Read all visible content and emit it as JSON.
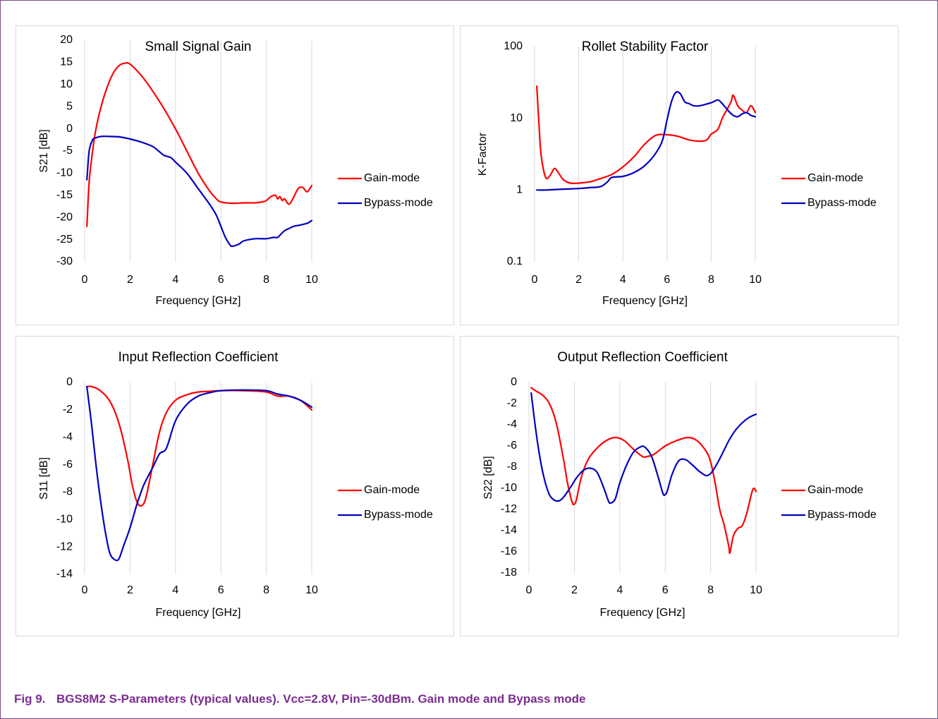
{
  "caption": {
    "label": "Fig 9.",
    "text": "BGS8M2 S-Parameters (typical values). Vcc=2.8V, Pin=-30dBm. Gain mode and Bypass mode"
  },
  "colors": {
    "gain": "#ff0000",
    "bypass": "#0000c0",
    "grid": "#d9d9d9",
    "text": "#000000"
  },
  "chart_data": [
    {
      "type": "line",
      "title": "Small Signal Gain",
      "xlabel": "Frequency [GHz]",
      "ylabel": "S21 [dB]",
      "xlim": [
        0,
        10
      ],
      "ylim": [
        -30,
        20
      ],
      "xticks": [
        0,
        2,
        4,
        6,
        8,
        10
      ],
      "yticks": [
        -30,
        -25,
        -20,
        -15,
        -10,
        -5,
        0,
        5,
        10,
        15,
        20
      ],
      "yscale": "linear",
      "grid": "vertical",
      "legend": "right",
      "series": [
        {
          "name": "Gain-mode",
          "color": "#ff0000",
          "x": [
            0.1,
            0.2,
            0.35,
            0.5,
            0.75,
            1.0,
            1.25,
            1.5,
            1.75,
            2.0,
            2.5,
            3.0,
            3.5,
            4.0,
            4.5,
            5.0,
            5.5,
            5.8,
            6.0,
            6.5,
            7.0,
            7.5,
            7.8,
            8.0,
            8.2,
            8.4,
            8.5,
            8.6,
            8.7,
            8.8,
            9.0,
            9.2,
            9.4,
            9.6,
            9.8,
            10.0
          ],
          "y": [
            -22,
            -12,
            -5,
            0,
            5.5,
            9.5,
            12.5,
            14.2,
            14.8,
            14.6,
            12,
            8.5,
            4.5,
            0,
            -5,
            -10,
            -14,
            -15.8,
            -16.5,
            -16.8,
            -16.7,
            -16.7,
            -16.5,
            -16.2,
            -15.3,
            -15,
            -15.8,
            -15.3,
            -16.2,
            -15.8,
            -17,
            -15.5,
            -13.5,
            -13.2,
            -14.2,
            -12.8
          ]
        },
        {
          "name": "Bypass-mode",
          "color": "#0000c0",
          "x": [
            0.1,
            0.2,
            0.35,
            0.5,
            0.75,
            1.0,
            1.5,
            2.0,
            2.5,
            3.0,
            3.3,
            3.5,
            3.8,
            4.0,
            4.5,
            5.0,
            5.5,
            5.8,
            6.0,
            6.2,
            6.4,
            6.5,
            6.8,
            7.0,
            7.5,
            8.0,
            8.3,
            8.5,
            8.6,
            8.8,
            9.0,
            9.2,
            9.5,
            9.8,
            10.0
          ],
          "y": [
            -11.5,
            -5,
            -2.5,
            -2,
            -1.7,
            -1.7,
            -1.8,
            -2.3,
            -3,
            -4,
            -5.2,
            -6,
            -6.5,
            -7.5,
            -10,
            -13.5,
            -17,
            -19.5,
            -22,
            -24.5,
            -26.2,
            -26.5,
            -26,
            -25.3,
            -24.8,
            -24.8,
            -24.5,
            -24.5,
            -24,
            -23,
            -22.5,
            -22,
            -21.7,
            -21.3,
            -20.7
          ]
        }
      ]
    },
    {
      "type": "line",
      "title": "Rollet Stability Factor",
      "xlabel": "Frequency [GHz]",
      "ylabel": "K-Factor",
      "xlim": [
        0,
        10
      ],
      "ylim": [
        0.1,
        100
      ],
      "xticks": [
        0,
        2,
        4,
        6,
        8,
        10
      ],
      "yticks": [
        0.1,
        1,
        10,
        100
      ],
      "yscale": "log",
      "grid": "vertical",
      "legend": "right",
      "series": [
        {
          "name": "Gain-mode",
          "color": "#ff0000",
          "x": [
            0.1,
            0.2,
            0.3,
            0.5,
            0.7,
            0.9,
            1.1,
            1.3,
            1.6,
            2.0,
            2.5,
            3.0,
            3.5,
            4.0,
            4.5,
            5.0,
            5.5,
            6.0,
            6.5,
            7.0,
            7.5,
            7.8,
            8.0,
            8.3,
            8.5,
            8.7,
            8.9,
            9.0,
            9.2,
            9.4,
            9.6,
            9.8,
            10.0
          ],
          "y": [
            28,
            8,
            3,
            1.5,
            1.6,
            2.0,
            1.7,
            1.4,
            1.25,
            1.25,
            1.3,
            1.45,
            1.65,
            2.1,
            2.9,
            4.4,
            5.8,
            5.9,
            5.6,
            5.0,
            4.8,
            5.0,
            6.0,
            7.0,
            10,
            13,
            17,
            21,
            15,
            13,
            12,
            15,
            12
          ]
        },
        {
          "name": "Bypass-mode",
          "color": "#0000c0",
          "x": [
            0.1,
            0.5,
            1.0,
            2.0,
            2.5,
            3.0,
            3.3,
            3.5,
            4.0,
            4.5,
            5.0,
            5.5,
            5.8,
            6.0,
            6.2,
            6.4,
            6.6,
            6.8,
            7.0,
            7.2,
            7.5,
            8.0,
            8.3,
            8.5,
            8.8,
            9.0,
            9.2,
            9.4,
            9.6,
            9.8,
            10.0
          ],
          "y": [
            1.0,
            1.0,
            1.02,
            1.05,
            1.08,
            1.12,
            1.3,
            1.5,
            1.55,
            1.75,
            2.2,
            3.3,
            5.0,
            9.5,
            17,
            23,
            22,
            17,
            16,
            15,
            15,
            16.5,
            18,
            16,
            12.5,
            11,
            10.5,
            11.5,
            12,
            11,
            10.5
          ]
        }
      ]
    },
    {
      "type": "line",
      "title": "Input Reflection Coefficient",
      "xlabel": "Frequency [GHz]",
      "ylabel": "S11 [dB]",
      "xlim": [
        0,
        10
      ],
      "ylim": [
        -14,
        0
      ],
      "xticks": [
        0,
        2,
        4,
        6,
        8,
        10
      ],
      "yticks": [
        -14,
        -12,
        -10,
        -8,
        -6,
        -4,
        -2,
        0
      ],
      "yscale": "linear",
      "grid": "vertical",
      "legend": "right",
      "series": [
        {
          "name": "Gain-mode",
          "color": "#ff0000",
          "x": [
            0.1,
            0.3,
            0.6,
            1.0,
            1.3,
            1.6,
            1.9,
            2.1,
            2.3,
            2.5,
            2.7,
            3.0,
            3.3,
            3.6,
            4.0,
            4.5,
            5.0,
            5.5,
            6.0,
            7.0,
            8.0,
            8.5,
            9.0,
            9.5,
            10.0
          ],
          "y": [
            -0.3,
            -0.3,
            -0.5,
            -1.1,
            -2.0,
            -3.5,
            -5.7,
            -7.5,
            -8.7,
            -9.0,
            -8.4,
            -6.0,
            -3.6,
            -2.2,
            -1.3,
            -0.9,
            -0.7,
            -0.65,
            -0.6,
            -0.6,
            -0.7,
            -1.0,
            -1.0,
            -1.3,
            -2.0
          ]
        },
        {
          "name": "Bypass-mode",
          "color": "#0000c0",
          "x": [
            0.1,
            0.3,
            0.5,
            0.7,
            0.9,
            1.1,
            1.3,
            1.5,
            1.7,
            2.0,
            2.3,
            2.6,
            3.0,
            3.3,
            3.6,
            4.0,
            4.5,
            5.0,
            5.5,
            6.0,
            7.0,
            8.0,
            8.5,
            9.0,
            9.5,
            10.0
          ],
          "y": [
            -0.3,
            -3.0,
            -6.0,
            -8.6,
            -10.8,
            -12.4,
            -12.9,
            -12.9,
            -12.0,
            -10.6,
            -8.9,
            -7.5,
            -6.2,
            -5.2,
            -4.8,
            -2.8,
            -1.6,
            -1.0,
            -0.75,
            -0.6,
            -0.55,
            -0.6,
            -0.85,
            -1.0,
            -1.3,
            -1.8
          ]
        }
      ]
    },
    {
      "type": "line",
      "title": "Output Reflection Coefficient",
      "xlabel": "Frequency [GHz]",
      "ylabel": "S22 [dB]",
      "xlim": [
        0,
        10
      ],
      "ylim": [
        -18,
        0
      ],
      "xticks": [
        0,
        2,
        4,
        6,
        8,
        10
      ],
      "yticks": [
        -18,
        -16,
        -14,
        -12,
        -10,
        -8,
        -6,
        -4,
        -2,
        0
      ],
      "yscale": "linear",
      "grid": "vertical",
      "legend": "right",
      "series": [
        {
          "name": "Gain-mode",
          "color": "#ff0000",
          "x": [
            0.1,
            0.3,
            0.6,
            0.9,
            1.2,
            1.5,
            1.7,
            1.9,
            2.0,
            2.1,
            2.3,
            2.6,
            3.0,
            3.4,
            3.8,
            4.2,
            4.6,
            5.0,
            5.2,
            5.5,
            6.0,
            6.5,
            7.0,
            7.4,
            7.8,
            8.0,
            8.2,
            8.4,
            8.6,
            8.8,
            8.85,
            9.0,
            9.2,
            9.4,
            9.6,
            9.8,
            9.9,
            10.0
          ],
          "y": [
            -0.5,
            -0.8,
            -1.2,
            -2.0,
            -3.8,
            -7.0,
            -9.5,
            -11.3,
            -11.5,
            -11.0,
            -9.0,
            -7.3,
            -6.2,
            -5.5,
            -5.2,
            -5.5,
            -6.3,
            -7.0,
            -7.0,
            -6.8,
            -6.0,
            -5.5,
            -5.2,
            -5.5,
            -6.5,
            -7.5,
            -9.5,
            -12.0,
            -13.5,
            -15.5,
            -16.1,
            -14.5,
            -13.8,
            -13.5,
            -12.3,
            -10.5,
            -10.0,
            -10.3
          ]
        },
        {
          "name": "Bypass-mode",
          "color": "#0000c0",
          "x": [
            0.1,
            0.3,
            0.5,
            0.7,
            0.9,
            1.1,
            1.3,
            1.5,
            1.8,
            2.1,
            2.4,
            2.7,
            3.0,
            3.3,
            3.5,
            3.6,
            3.8,
            4.0,
            4.3,
            4.6,
            4.9,
            5.1,
            5.4,
            5.7,
            5.9,
            6.0,
            6.1,
            6.3,
            6.6,
            6.9,
            7.2,
            7.5,
            7.8,
            8.0,
            8.2,
            8.5,
            8.8,
            9.1,
            9.4,
            9.7,
            10.0
          ],
          "y": [
            -1.0,
            -4.5,
            -7.3,
            -9.3,
            -10.6,
            -11.1,
            -11.2,
            -10.9,
            -10.0,
            -9.0,
            -8.3,
            -8.1,
            -8.5,
            -10.0,
            -11.2,
            -11.4,
            -11.0,
            -9.5,
            -7.8,
            -6.6,
            -6.1,
            -6.1,
            -7.0,
            -9.0,
            -10.5,
            -10.6,
            -10.2,
            -8.7,
            -7.4,
            -7.3,
            -7.8,
            -8.4,
            -8.8,
            -8.6,
            -8.0,
            -6.8,
            -5.5,
            -4.5,
            -3.8,
            -3.3,
            -3.0
          ]
        }
      ]
    }
  ]
}
